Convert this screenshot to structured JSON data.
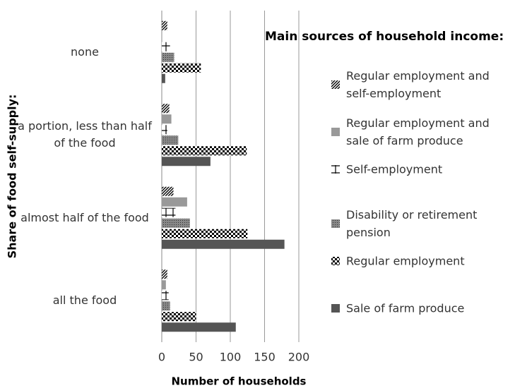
{
  "chart_data": {
    "type": "barh",
    "legend_title": "Main sources of household income:",
    "ylabel": "Share of food self-supply:",
    "xlabel": "Number of households",
    "categories": [
      "none",
      "a portion, less than half of the food",
      "almost half of the food",
      "all the food"
    ],
    "series": [
      {
        "name": "Regular employment and self-employment",
        "color": "#000000",
        "pattern": "hatch",
        "values": [
          8,
          11,
          17,
          8
        ]
      },
      {
        "name": "Regular employment and sale of farm produce",
        "color": "#999999",
        "pattern": "solid",
        "values": [
          0,
          14,
          37,
          6
        ]
      },
      {
        "name": "Self-employment",
        "color": "#000000",
        "pattern": "plus",
        "values": [
          12,
          8,
          20,
          10
        ]
      },
      {
        "name": "Disability or retirement pension",
        "color": "#888888",
        "pattern": "dots",
        "values": [
          18,
          24,
          41,
          12
        ]
      },
      {
        "name": "Regular employment",
        "color": "#000000",
        "pattern": "checker",
        "values": [
          57,
          124,
          125,
          50
        ]
      },
      {
        "name": "Sale of farm produce",
        "color": "#555555",
        "pattern": "solid",
        "values": [
          5,
          71,
          179,
          108
        ]
      }
    ],
    "xlim": [
      0,
      200
    ],
    "xticks": [
      0,
      50,
      100,
      150,
      200
    ],
    "grid": true
  }
}
